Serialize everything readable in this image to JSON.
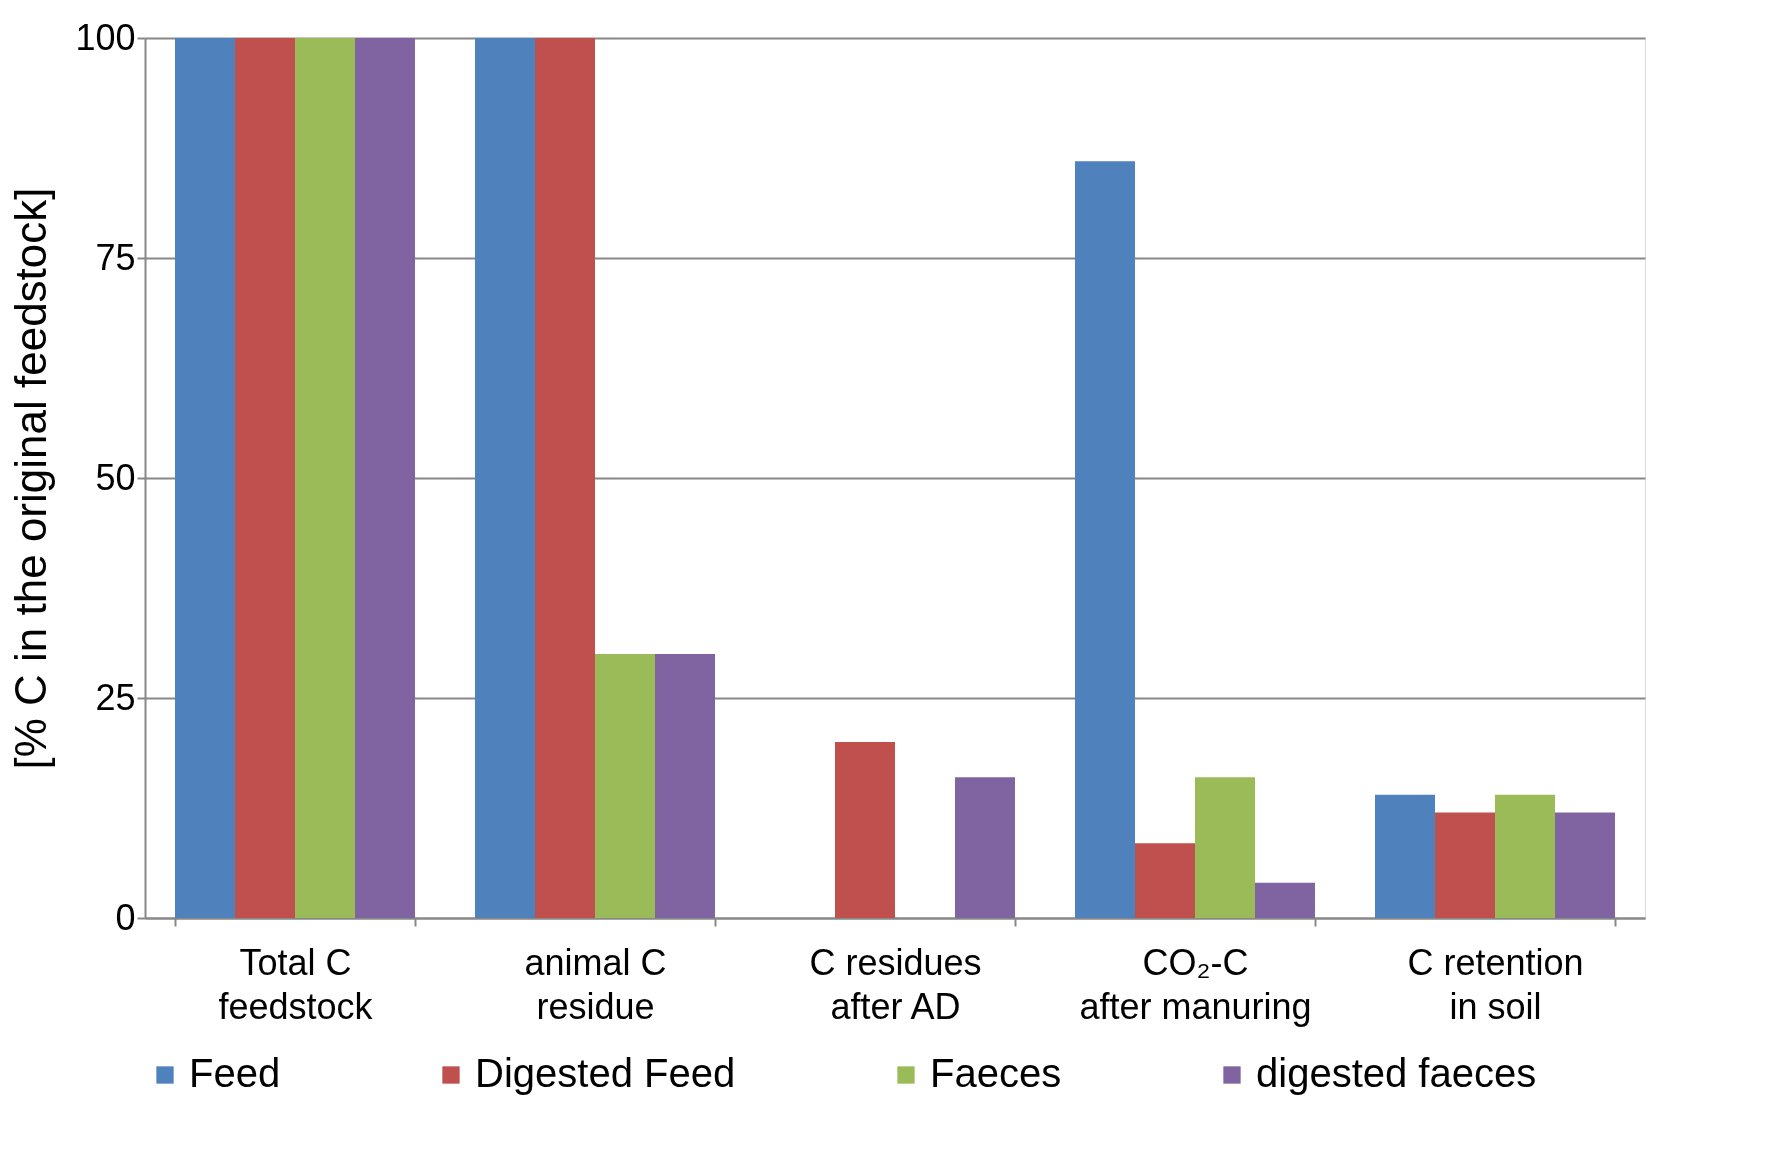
{
  "chart_data": {
    "type": "bar",
    "ylabel": "[% C in the original feedstock]",
    "categories": [
      "Total C\nfeedstock",
      "animal C\nresidue",
      "C residues\nafter AD",
      "CO₂-C\nafter manuring",
      "C retention\nin soil"
    ],
    "series": [
      {
        "name": "Feed",
        "color": "#4f81bd",
        "values": [
          100,
          100,
          0,
          86,
          14
        ]
      },
      {
        "name": "Digested Feed",
        "color": "#c0504d",
        "values": [
          100,
          100,
          20,
          8.5,
          12
        ]
      },
      {
        "name": "Faeces",
        "color": "#9bbb59",
        "values": [
          100,
          30,
          0,
          16,
          14
        ]
      },
      {
        "name": "digested faeces",
        "color": "#8064a2",
        "values": [
          100,
          30,
          16,
          4,
          12
        ]
      }
    ],
    "ylim": [
      0,
      100
    ],
    "yticks": [
      0,
      25,
      50,
      75,
      100
    ],
    "grid": "y",
    "legend": "bottom"
  }
}
